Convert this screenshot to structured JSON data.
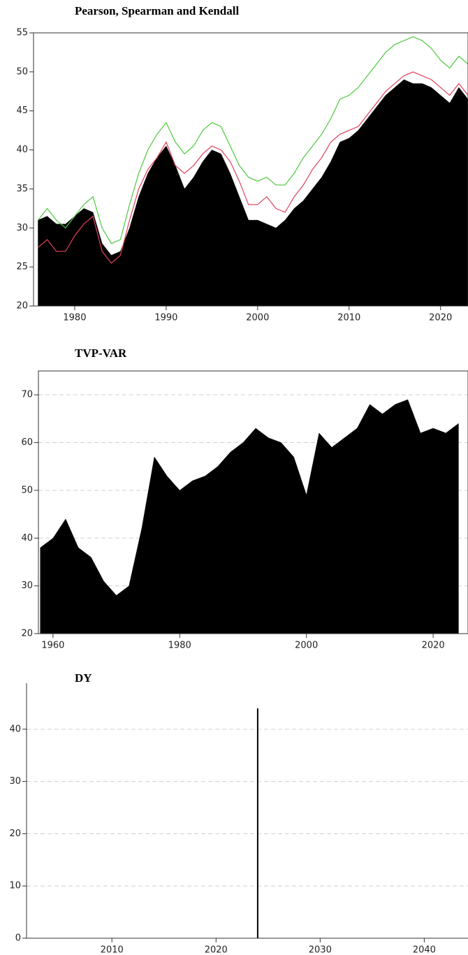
{
  "chart_data": [
    {
      "type": "line",
      "title": "Pearson, Spearman and Kendall",
      "x": [
        1976,
        1977,
        1978,
        1979,
        1980,
        1981,
        1982,
        1983,
        1984,
        1985,
        1986,
        1987,
        1988,
        1989,
        1990,
        1991,
        1992,
        1993,
        1994,
        1995,
        1996,
        1997,
        1998,
        1999,
        2000,
        2001,
        2002,
        2003,
        2004,
        2005,
        2006,
        2007,
        2008,
        2009,
        2010,
        2011,
        2012,
        2013,
        2014,
        2015,
        2016,
        2017,
        2018,
        2019,
        2020,
        2021,
        2022,
        2023
      ],
      "series": [
        {
          "color": "#000000",
          "style": "area",
          "values": [
            31,
            31.5,
            30.5,
            30.5,
            31.5,
            32.5,
            32,
            28,
            26.5,
            27,
            30,
            34,
            37,
            39,
            40.5,
            38,
            35,
            36.5,
            38.5,
            40,
            39.5,
            37,
            34,
            31,
            31,
            30.5,
            30,
            31,
            32.5,
            33.5,
            35,
            36.5,
            38.5,
            41,
            41.5,
            42.5,
            44,
            45.5,
            47,
            48,
            49,
            48.5,
            48.5,
            48,
            47,
            46,
            48,
            46.5
          ]
        },
        {
          "color": "#e0405a",
          "style": "line",
          "values": [
            27.5,
            28.5,
            27,
            27,
            29,
            30.5,
            31.5,
            27,
            25.5,
            26.5,
            31,
            35,
            37.5,
            39,
            41,
            38,
            37,
            38,
            39.5,
            40.5,
            40,
            38.5,
            36,
            33,
            33,
            34,
            32.5,
            32,
            34,
            35.5,
            37.5,
            39,
            41,
            42,
            42.5,
            43,
            44.5,
            46,
            47.5,
            48.5,
            49.5,
            50,
            49.5,
            49,
            48,
            47,
            48.5,
            47
          ]
        },
        {
          "color": "#4cc83c",
          "style": "line",
          "values": [
            31,
            32.5,
            31,
            30,
            31.5,
            33,
            34,
            30,
            28,
            28.5,
            33,
            37,
            40,
            42,
            43.5,
            41,
            39.5,
            40.5,
            42.5,
            43.5,
            43,
            40.5,
            38,
            36.5,
            36,
            36.5,
            35.5,
            35.5,
            37,
            39,
            40.5,
            42,
            44,
            46.5,
            47,
            48,
            49.5,
            51,
            52.5,
            53.5,
            54,
            54.5,
            54,
            53,
            51.5,
            50.5,
            52,
            51
          ]
        }
      ],
      "xlim": [
        1975.5,
        2023
      ],
      "xticks": [
        1980,
        1990,
        2000,
        2010,
        2020
      ],
      "ylim": [
        20,
        55
      ],
      "yticks": [
        20,
        25,
        30,
        35,
        40,
        45,
        50,
        55
      ],
      "grid": false
    },
    {
      "type": "area",
      "title": "TVP-VAR",
      "x": [
        1958,
        1960,
        1962,
        1964,
        1966,
        1968,
        1970,
        1972,
        1974,
        1976,
        1978,
        1980,
        1982,
        1984,
        1986,
        1988,
        1990,
        1992,
        1994,
        1996,
        1998,
        2000,
        2002,
        2004,
        2006,
        2008,
        2010,
        2012,
        2014,
        2016,
        2018,
        2020,
        2022,
        2024
      ],
      "values": [
        38,
        40,
        44,
        38,
        36,
        31,
        28,
        30,
        42,
        57,
        53,
        50,
        52,
        53,
        55,
        58,
        60,
        63,
        61,
        60,
        57,
        49,
        62,
        59,
        61,
        63,
        68,
        66,
        68,
        69,
        62,
        63,
        62,
        64
      ],
      "color": "#000000",
      "xlim": [
        1957.7,
        2025.5
      ],
      "xticks": [
        1960,
        1980,
        2000,
        2020
      ],
      "ylim": [
        20,
        75
      ],
      "yticks": [
        20,
        30,
        40,
        50,
        60,
        70
      ],
      "grid": true
    },
    {
      "type": "bar",
      "title": "DY",
      "x": [
        2024
      ],
      "values": [
        44
      ],
      "color": "#000000",
      "xlim": [
        2001.8,
        2044.2
      ],
      "xticks": [
        2010,
        2020,
        2030,
        2040
      ],
      "ylim": [
        0,
        48.8
      ],
      "yticks": [
        0,
        10,
        20,
        30,
        40
      ],
      "grid": true
    }
  ]
}
